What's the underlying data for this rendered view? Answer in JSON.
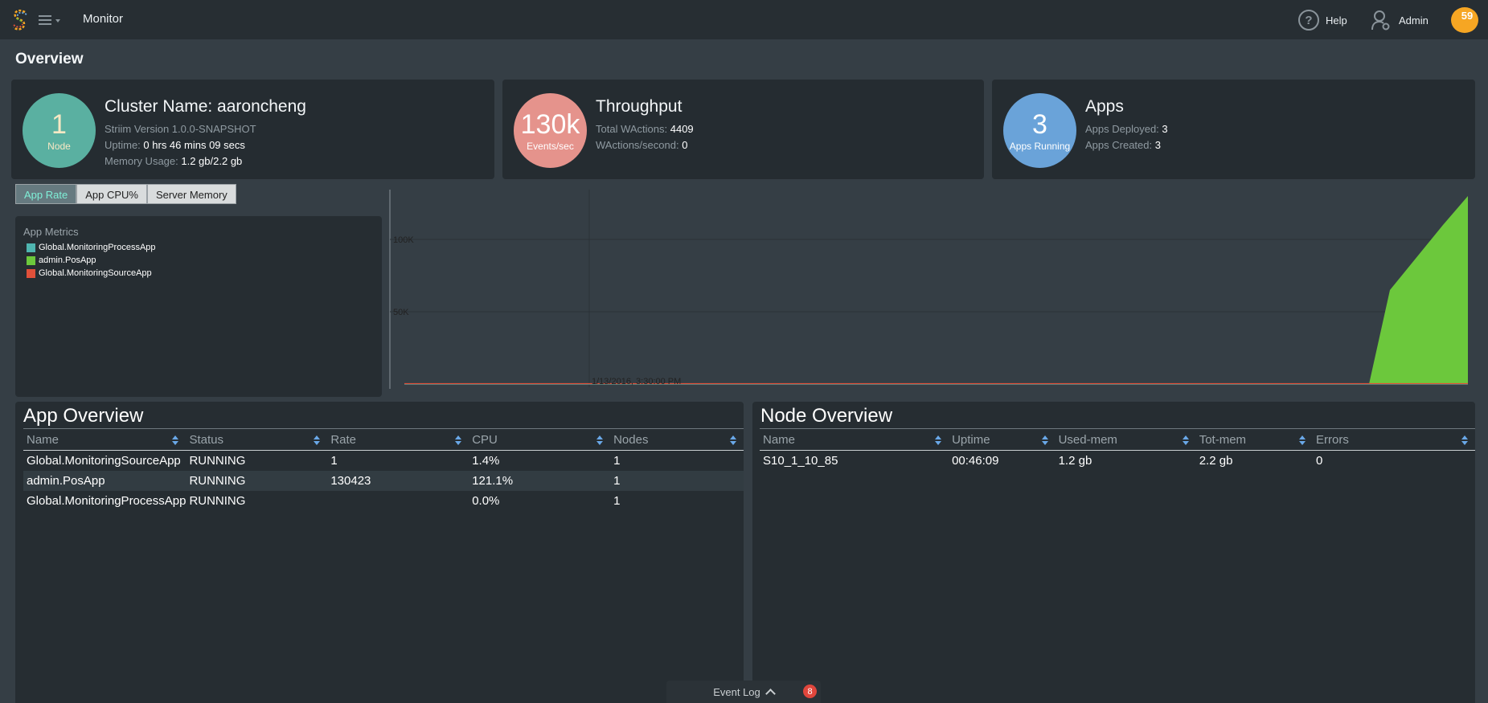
{
  "header": {
    "app_title": "Monitor",
    "help_label": "Help",
    "help_glyph": "?",
    "user_label": "Admin",
    "notification_count": "59"
  },
  "page_title": "Overview",
  "cards": {
    "cluster": {
      "circle_value": "1",
      "circle_label": "Node",
      "circle_color": "#5ab0a1",
      "title": "Cluster Name: aaroncheng",
      "version": "Striim Version 1.0.0-SNAPSHOT",
      "uptime_label": "Uptime:",
      "uptime_value": "0 hrs 46 mins 09 secs",
      "memory_label": "Memory Usage:",
      "memory_value": "1.2 gb/2.2 gb"
    },
    "throughput": {
      "circle_value": "130k",
      "circle_label": "Events/sec",
      "circle_color": "#e5938c",
      "title": "Throughput",
      "total_label": "Total WActions:",
      "total_value": "4409",
      "rate_label": "WActions/second:",
      "rate_value": "0"
    },
    "apps": {
      "circle_value": "3",
      "circle_label": "Apps Running",
      "circle_color": "#6aa3d9",
      "title": "Apps",
      "deployed_label": "Apps Deployed:",
      "deployed_value": "3",
      "created_label": "Apps Created:",
      "created_value": "3"
    }
  },
  "metric_tabs": [
    "App Rate",
    "App CPU%",
    "Server Memory"
  ],
  "legend": {
    "title": "App Metrics",
    "items": [
      {
        "label": "Global.MonitoringProcessApp",
        "color": "#4fb5b0"
      },
      {
        "label": "admin.PosApp",
        "color": "#6cc83c"
      },
      {
        "label": "Global.MonitoringSourceApp",
        "color": "#e0503a"
      }
    ]
  },
  "chart_data": {
    "type": "area",
    "y_ticks": [
      "100K",
      "50K"
    ],
    "x_tick": "1/13/2016, 3:30:00 PM",
    "series": [
      {
        "name": "Global.MonitoringProcessApp",
        "color": "#4fb5b0",
        "values": [
          0,
          0,
          0,
          0,
          0,
          0,
          0
        ]
      },
      {
        "name": "admin.PosApp",
        "color": "#6cc83c",
        "values": [
          0,
          0,
          0,
          0,
          65000,
          110000,
          130000
        ]
      },
      {
        "name": "Global.MonitoringSourceApp",
        "color": "#e0503a",
        "values": [
          1,
          1,
          1,
          1,
          1,
          1,
          1
        ]
      }
    ],
    "ylim": [
      0,
      130000
    ]
  },
  "app_overview": {
    "title": "App Overview",
    "columns": [
      "Name",
      "Status",
      "Rate",
      "CPU",
      "Nodes"
    ],
    "rows": [
      [
        "Global.MonitoringSourceApp",
        "RUNNING",
        "1",
        "1.4%",
        "1"
      ],
      [
        "admin.PosApp",
        "RUNNING",
        "130423",
        "121.1%",
        "1"
      ],
      [
        "Global.MonitoringProcessApp",
        "RUNNING",
        "",
        "0.0%",
        "1"
      ]
    ]
  },
  "node_overview": {
    "title": "Node Overview",
    "columns": [
      "Name",
      "Uptime",
      "Used-mem",
      "Tot-mem",
      "Errors"
    ],
    "rows": [
      [
        "S10_1_10_85",
        "00:46:09",
        "1.2 gb",
        "2.2 gb",
        "0"
      ]
    ]
  },
  "event_log": {
    "label": "Event Log",
    "count": "8"
  }
}
